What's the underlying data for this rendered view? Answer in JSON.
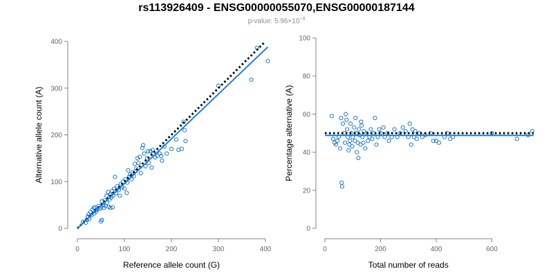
{
  "title": "rs113926409 - ENSG00000055070,ENSG00000187144",
  "subtitle": {
    "prefix": "p-value: 5.96×10",
    "exponent": "−4"
  },
  "colors": {
    "points": "#1f78c8",
    "fit": "#1a7fe0",
    "reference": "#000000",
    "axis": "#808080"
  },
  "chart_data": [
    {
      "type": "scatter",
      "xlabel": "Reference allele count (G)",
      "ylabel": "Alternative allele count (A)",
      "xlim": [
        0,
        400
      ],
      "ylim": [
        0,
        400
      ],
      "xticks": [
        0,
        100,
        200,
        300,
        400
      ],
      "yticks": [
        0,
        100,
        200,
        300,
        400
      ],
      "reference_line": {
        "label": "y = x",
        "x": [
          0,
          400
        ],
        "y": [
          0,
          400
        ]
      },
      "fit_line": {
        "x": [
          0,
          405
        ],
        "y": [
          0,
          388
        ]
      },
      "points": [
        [
          12,
          14
        ],
        [
          18,
          12
        ],
        [
          20,
          18
        ],
        [
          22,
          25
        ],
        [
          24,
          30
        ],
        [
          25,
          20
        ],
        [
          28,
          35
        ],
        [
          30,
          28
        ],
        [
          32,
          40
        ],
        [
          35,
          44
        ],
        [
          36,
          32
        ],
        [
          38,
          45
        ],
        [
          40,
          36
        ],
        [
          42,
          40
        ],
        [
          45,
          48
        ],
        [
          48,
          42
        ],
        [
          50,
          15
        ],
        [
          50,
          45
        ],
        [
          52,
          58
        ],
        [
          52,
          18
        ],
        [
          55,
          50
        ],
        [
          56,
          44
        ],
        [
          58,
          60
        ],
        [
          60,
          48
        ],
        [
          62,
          70
        ],
        [
          63,
          55
        ],
        [
          65,
          78
        ],
        [
          66,
          46
        ],
        [
          68,
          62
        ],
        [
          70,
          44
        ],
        [
          70,
          72
        ],
        [
          72,
          66
        ],
        [
          74,
          80
        ],
        [
          75,
          45
        ],
        [
          76,
          70
        ],
        [
          78,
          85
        ],
        [
          80,
          110
        ],
        [
          82,
          75
        ],
        [
          85,
          90
        ],
        [
          88,
          82
        ],
        [
          90,
          70
        ],
        [
          92,
          95
        ],
        [
          95,
          88
        ],
        [
          97,
          100
        ],
        [
          100,
          85
        ],
        [
          102,
          105
        ],
        [
          105,
          76
        ],
        [
          106,
          98
        ],
        [
          108,
          124
        ],
        [
          110,
          110
        ],
        [
          112,
          115
        ],
        [
          115,
          105
        ],
        [
          118,
          120
        ],
        [
          120,
          112
        ],
        [
          122,
          138
        ],
        [
          125,
          128
        ],
        [
          128,
          150
        ],
        [
          130,
          140
        ],
        [
          133,
          153
        ],
        [
          135,
          118
        ],
        [
          138,
          172
        ],
        [
          140,
          178
        ],
        [
          142,
          160
        ],
        [
          145,
          133
        ],
        [
          148,
          150
        ],
        [
          150,
          165
        ],
        [
          152,
          140
        ],
        [
          155,
          165
        ],
        [
          158,
          130
        ],
        [
          160,
          168
        ],
        [
          162,
          160
        ],
        [
          165,
          152
        ],
        [
          170,
          155
        ],
        [
          175,
          160
        ],
        [
          178,
          155
        ],
        [
          180,
          145
        ],
        [
          185,
          175
        ],
        [
          190,
          160
        ],
        [
          200,
          170
        ],
        [
          210,
          190
        ],
        [
          215,
          168
        ],
        [
          222,
          170
        ],
        [
          226,
          228
        ],
        [
          228,
          210
        ],
        [
          230,
          187
        ],
        [
          300,
          305
        ],
        [
          370,
          318
        ],
        [
          382,
          386
        ],
        [
          405,
          358
        ]
      ]
    },
    {
      "type": "scatter",
      "xlabel": "Total number of reads",
      "ylabel": "Percentage alternative (A)",
      "xlim": [
        0,
        750
      ],
      "ylim": [
        0,
        100
      ],
      "xticks": [
        0,
        200,
        400,
        600
      ],
      "yticks": [
        0,
        20,
        40,
        60,
        80,
        100
      ],
      "reference_line": {
        "label": "y = 50",
        "x": [
          0,
          750
        ],
        "y": [
          50,
          50
        ]
      },
      "fit_line": {
        "x": [
          0,
          750
        ],
        "y": [
          48.8,
          48.8
        ]
      },
      "points": [
        [
          25,
          59
        ],
        [
          30,
          47
        ],
        [
          35,
          45
        ],
        [
          40,
          44
        ],
        [
          45,
          46
        ],
        [
          50,
          48
        ],
        [
          55,
          42
        ],
        [
          58,
          58
        ],
        [
          60,
          24
        ],
        [
          62,
          22
        ],
        [
          65,
          55
        ],
        [
          70,
          50
        ],
        [
          72,
          45
        ],
        [
          75,
          60
        ],
        [
          78,
          57
        ],
        [
          80,
          52
        ],
        [
          82,
          48
        ],
        [
          85,
          41
        ],
        [
          88,
          44
        ],
        [
          90,
          46
        ],
        [
          92,
          55
        ],
        [
          95,
          50
        ],
        [
          98,
          43
        ],
        [
          100,
          48
        ],
        [
          105,
          53
        ],
        [
          108,
          46
        ],
        [
          110,
          58
        ],
        [
          112,
          50
        ],
        [
          115,
          40
        ],
        [
          118,
          45
        ],
        [
          120,
          37
        ],
        [
          122,
          52
        ],
        [
          125,
          49
        ],
        [
          128,
          44
        ],
        [
          130,
          56
        ],
        [
          132,
          54
        ],
        [
          135,
          48
        ],
        [
          138,
          45
        ],
        [
          140,
          51
        ],
        [
          145,
          42
        ],
        [
          150,
          50
        ],
        [
          155,
          46
        ],
        [
          160,
          48
        ],
        [
          165,
          52
        ],
        [
          170,
          47
        ],
        [
          175,
          50
        ],
        [
          180,
          58
        ],
        [
          185,
          44
        ],
        [
          190,
          48
        ],
        [
          195,
          52
        ],
        [
          200,
          50
        ],
        [
          210,
          53
        ],
        [
          215,
          48
        ],
        [
          225,
          50
        ],
        [
          230,
          46
        ],
        [
          240,
          48
        ],
        [
          250,
          52
        ],
        [
          260,
          48
        ],
        [
          270,
          50
        ],
        [
          280,
          53
        ],
        [
          290,
          51
        ],
        [
          300,
          48
        ],
        [
          305,
          55
        ],
        [
          310,
          44
        ],
        [
          315,
          52
        ],
        [
          320,
          48
        ],
        [
          325,
          51
        ],
        [
          330,
          47
        ],
        [
          340,
          50
        ],
        [
          350,
          48
        ],
        [
          360,
          49
        ],
        [
          380,
          50
        ],
        [
          390,
          46
        ],
        [
          400,
          46
        ],
        [
          410,
          45
        ],
        [
          430,
          48
        ],
        [
          440,
          50
        ],
        [
          450,
          47
        ],
        [
          460,
          48
        ],
        [
          600,
          50
        ],
        [
          690,
          47
        ],
        [
          730,
          49
        ],
        [
          745,
          51
        ]
      ]
    }
  ]
}
